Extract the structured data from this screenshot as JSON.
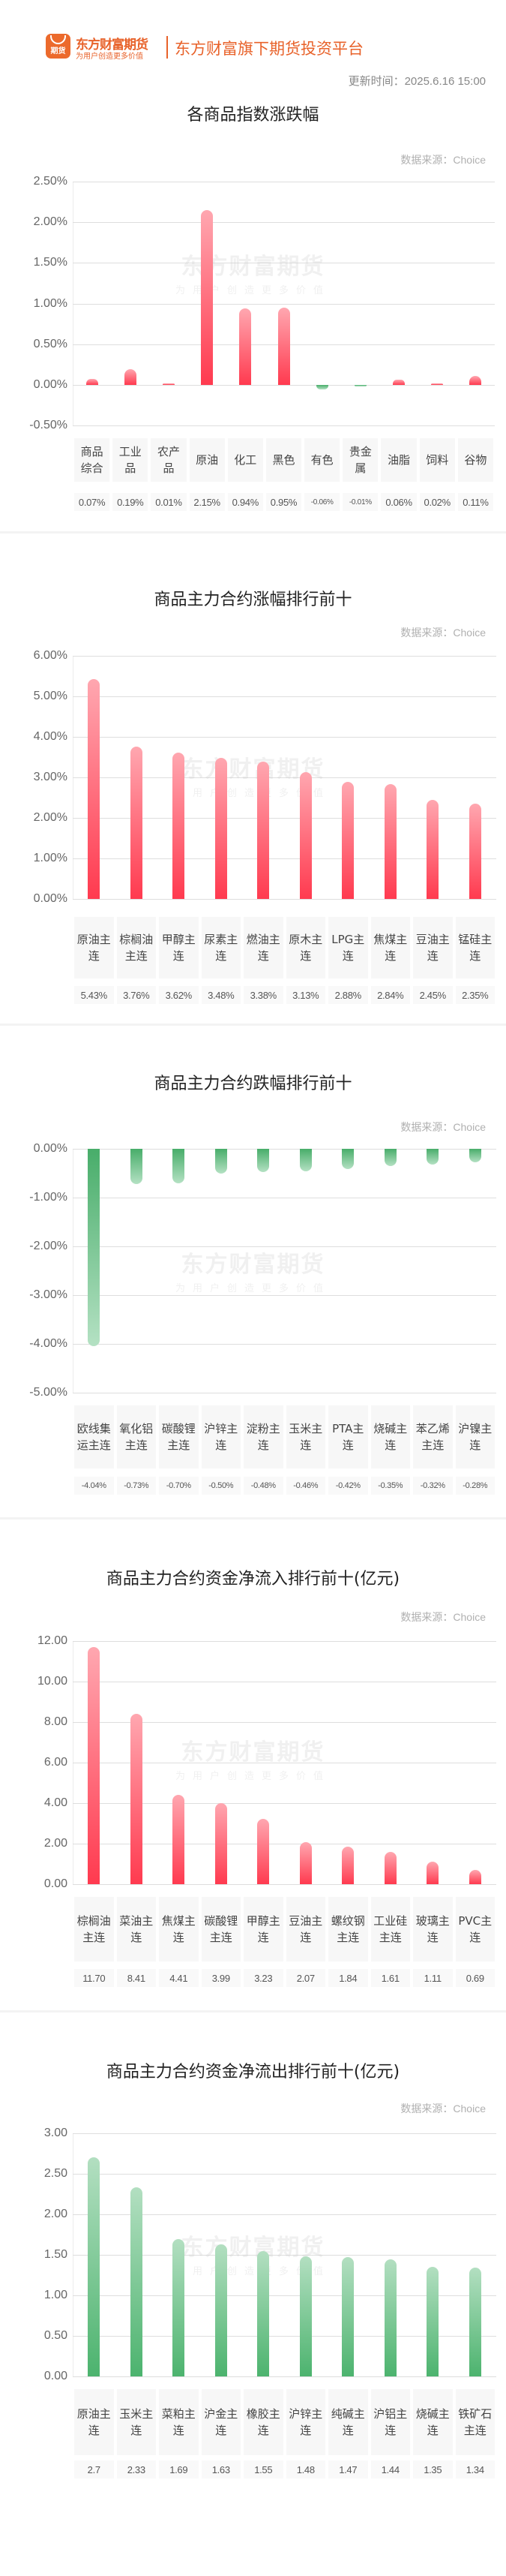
{
  "header": {
    "logo_text": "期货",
    "brand_name": "东方财富期货",
    "brand_slogan": "为用户创造更多价值",
    "tagline": "东方财富旗下期货投资平台",
    "update_time": "更新时间：2025.6.16 15:00"
  },
  "watermark": {
    "main": "东方财富期货",
    "sub": "为用户创造更多价值"
  },
  "colors": {
    "brand": "#E8622A",
    "up_red": "#FF3A4F",
    "down_green": "#48AD6A",
    "grid": "#DEDEDE"
  },
  "sections": [
    {
      "title": "各商品指数涨跌幅",
      "data_source": "数据来源：Choice"
    },
    {
      "title": "商品主力合约涨幅排行前十",
      "data_source": "数据来源：Choice"
    },
    {
      "title": "商品主力合约跌幅排行前十",
      "data_source": "数据来源：Choice"
    },
    {
      "title": "商品主力合约资金净流入排行前十(亿元)",
      "data_source": "数据来源：Choice"
    },
    {
      "title": "商品主力合约资金净流出排行前十(亿元)",
      "data_source": "数据来源：Choice"
    }
  ],
  "chart_data": [
    {
      "type": "bar",
      "title": "各商品指数涨跌幅",
      "categories": [
        "商品综合",
        "工业品",
        "农产品",
        "原油",
        "化工",
        "黑色",
        "有色",
        "贵金属",
        "油脂",
        "饲料",
        "谷物"
      ],
      "values": [
        0.07,
        0.19,
        0.01,
        2.15,
        0.94,
        0.95,
        -0.06,
        -0.01,
        0.06,
        0.02,
        0.11
      ],
      "value_labels": [
        "0.07%",
        "0.19%",
        "0.01%",
        "2.15%",
        "0.94%",
        "0.95%",
        "-0.06%",
        "-0.01%",
        "0.06%",
        "0.02%",
        "0.11%"
      ],
      "y_ticks": [
        "2.50%",
        "2.00%",
        "1.50%",
        "1.00%",
        "0.50%",
        "0.00%",
        "-0.50%"
      ],
      "ylim": [
        -0.5,
        2.5
      ],
      "unit": "%",
      "xlabel": "",
      "ylabel": "",
      "grid": true,
      "legend": "none"
    },
    {
      "type": "bar",
      "title": "商品主力合约涨幅排行前十",
      "categories": [
        "原油主连",
        "棕榈油主连",
        "甲醇主连",
        "尿素主连",
        "燃油主连",
        "原木主连",
        "LPG主连",
        "焦煤主连",
        "豆油主连",
        "锰硅主连"
      ],
      "values": [
        5.43,
        3.76,
        3.62,
        3.48,
        3.38,
        3.13,
        2.88,
        2.84,
        2.45,
        2.35
      ],
      "value_labels": [
        "5.43%",
        "3.76%",
        "3.62%",
        "3.48%",
        "3.38%",
        "3.13%",
        "2.88%",
        "2.84%",
        "2.45%",
        "2.35%"
      ],
      "y_ticks": [
        "6.00%",
        "5.00%",
        "4.00%",
        "3.00%",
        "2.00%",
        "1.00%",
        "0.00%"
      ],
      "ylim": [
        0,
        6
      ],
      "unit": "%",
      "xlabel": "",
      "ylabel": "",
      "grid": true,
      "legend": "none"
    },
    {
      "type": "bar",
      "title": "商品主力合约跌幅排行前十",
      "categories": [
        "欧线集运主连",
        "氧化铝主连",
        "碳酸锂主连",
        "沪锌主连",
        "淀粉主连",
        "玉米主连",
        "PTA主连",
        "烧碱主连",
        "苯乙烯主连",
        "沪镍主连"
      ],
      "values": [
        -4.04,
        -0.73,
        -0.7,
        -0.5,
        -0.48,
        -0.46,
        -0.42,
        -0.35,
        -0.32,
        -0.28
      ],
      "value_labels": [
        "-4.04%",
        "-0.73%",
        "-0.70%",
        "-0.50%",
        "-0.48%",
        "-0.46%",
        "-0.42%",
        "-0.35%",
        "-0.32%",
        "-0.28%"
      ],
      "y_ticks": [
        "0.00%",
        "-1.00%",
        "-2.00%",
        "-3.00%",
        "-4.00%",
        "-5.00%"
      ],
      "ylim": [
        -5,
        0
      ],
      "unit": "%",
      "xlabel": "",
      "ylabel": "",
      "grid": true,
      "legend": "none"
    },
    {
      "type": "bar",
      "title": "商品主力合约资金净流入排行前十(亿元)",
      "categories": [
        "棕榈油主连",
        "菜油主连",
        "焦煤主连",
        "碳酸锂主连",
        "甲醇主连",
        "豆油主连",
        "螺纹钢主连",
        "工业硅主连",
        "玻璃主连",
        "PVC主连"
      ],
      "values": [
        11.7,
        8.41,
        4.41,
        3.99,
        3.23,
        2.07,
        1.84,
        1.61,
        1.11,
        0.69
      ],
      "value_labels": [
        "11.70",
        "8.41",
        "4.41",
        "3.99",
        "3.23",
        "2.07",
        "1.84",
        "1.61",
        "1.11",
        "0.69"
      ],
      "y_ticks": [
        "12.00",
        "10.00",
        "8.00",
        "6.00",
        "4.00",
        "2.00",
        "0.00"
      ],
      "ylim": [
        0,
        12
      ],
      "unit": "亿元",
      "xlabel": "",
      "ylabel": "",
      "grid": true,
      "legend": "none"
    },
    {
      "type": "bar",
      "title": "商品主力合约资金净流出排行前十(亿元)",
      "categories": [
        "原油主连",
        "玉米主连",
        "菜粕主连",
        "沪金主连",
        "橡胶主连",
        "沪锌主连",
        "纯碱主连",
        "沪铝主连",
        "烧碱主连",
        "铁矿石主连"
      ],
      "values": [
        2.7,
        2.33,
        1.69,
        1.63,
        1.55,
        1.48,
        1.47,
        1.44,
        1.35,
        1.34
      ],
      "value_labels": [
        "2.7",
        "2.33",
        "1.69",
        "1.63",
        "1.55",
        "1.48",
        "1.47",
        "1.44",
        "1.35",
        "1.34"
      ],
      "y_ticks": [
        "3.00",
        "2.50",
        "2.00",
        "1.50",
        "1.00",
        "0.50",
        "0.00"
      ],
      "ylim": [
        0,
        3
      ],
      "unit": "亿元",
      "xlabel": "",
      "ylabel": "",
      "grid": true,
      "legend": "none"
    }
  ]
}
